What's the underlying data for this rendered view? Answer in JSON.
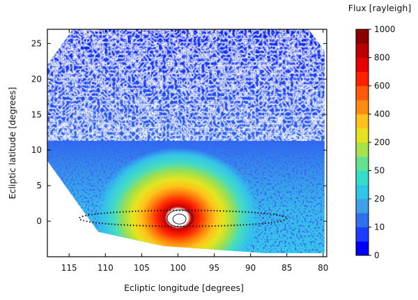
{
  "chart_data": {
    "type": "heatmap",
    "xlabel": "Ecliptic longitude [degrees]",
    "ylabel": "Ecliptic latitude [degrees]",
    "xlim": [
      118,
      79.5
    ],
    "ylim": [
      -5,
      27
    ],
    "xticks": [
      115,
      110,
      105,
      100,
      95,
      90,
      85,
      80
    ],
    "yticks": [
      0,
      5,
      10,
      15,
      20,
      25
    ],
    "x_inverted": true,
    "grid": false,
    "coverage_polygon": [
      [
        114.5,
        27
      ],
      [
        82,
        27
      ],
      [
        79.8,
        24
      ],
      [
        79.8,
        -4.5
      ],
      [
        88,
        -4.5
      ],
      [
        102,
        -3.5
      ],
      [
        111,
        -1.5
      ],
      [
        118,
        8.5
      ],
      [
        118,
        22
      ]
    ],
    "source": {
      "x": 100,
      "y": 0.5,
      "peak_flux": 1000
    },
    "ellipse": {
      "cx": 99.3,
      "cy": 0.4,
      "rx": 14.3,
      "ry": 0.9,
      "style": "dotted"
    },
    "inner_contours": [
      {
        "x": 99.8,
        "y": 0.3,
        "rx": 0.9,
        "ry": 0.7
      },
      {
        "x": 99.7,
        "y": 0.4,
        "rx": 1.8,
        "ry": 1.2
      }
    ],
    "colorbar": {
      "title": "Flux [rayleigh]",
      "tick_labels": [
        "1000",
        "800",
        "600",
        "400",
        "200",
        "50",
        "20",
        "10",
        "0"
      ],
      "colors": [
        "#0000ff",
        "#1c3cff",
        "#2f6ff0",
        "#3f9fe8",
        "#2fc7e8",
        "#34dccb",
        "#63e090",
        "#a6e24a",
        "#e7e21f",
        "#ffc21a",
        "#ff8c10",
        "#ff5a0a",
        "#ff2000",
        "#e60000",
        "#bc0000",
        "#8c0000"
      ]
    }
  }
}
